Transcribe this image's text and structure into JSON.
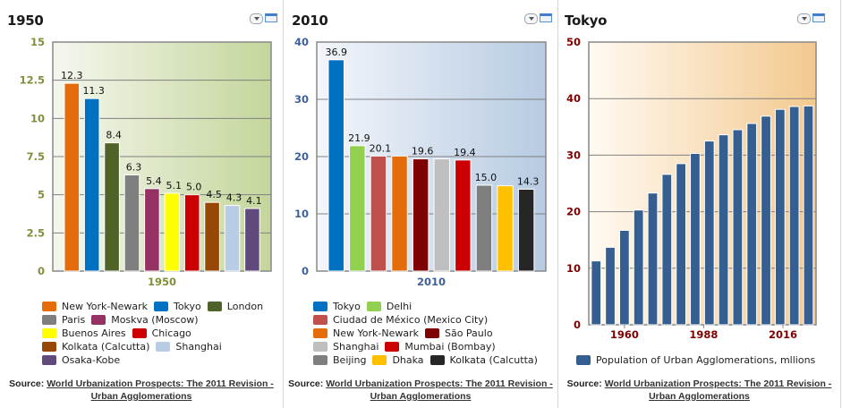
{
  "source": {
    "prefix": "Source:",
    "link_line1": "World Urbanization Prospects: The 2011 Revision -",
    "link_line2": "Urban Agglomerations"
  },
  "panels": [
    {
      "title": "1950"
    },
    {
      "title": "2010"
    },
    {
      "title": "Tokyo"
    }
  ],
  "chart_data": [
    {
      "type": "bar",
      "title": "1950",
      "xlabel": "1950",
      "ylabel": "",
      "ylim": [
        0,
        15
      ],
      "yticks": [
        "0",
        "2.5",
        "5",
        "7.5",
        "10",
        "12.5",
        "15"
      ],
      "ytick_values": [
        0,
        2.5,
        5,
        7.5,
        10,
        12.5,
        15
      ],
      "grid": true,
      "axis_color": "#7f8f3a",
      "legend_position": "bottom",
      "categories": [
        "New York-Newark",
        "Tokyo",
        "London",
        "Paris",
        "Moskva (Moscow)",
        "Buenos Aires",
        "Chicago",
        "Kolkata (Calcutta)",
        "Shanghai",
        "Osaka-Kobe"
      ],
      "values": [
        12.3,
        11.3,
        8.4,
        6.3,
        5.4,
        5.1,
        5.0,
        4.5,
        4.3,
        4.1
      ],
      "labels": [
        "12.3",
        "11.3",
        "8.4",
        "6.3",
        "5.4",
        "5.1",
        "5.0",
        "4.5",
        "4.3",
        "4.1"
      ],
      "colors": [
        "#e46c0a",
        "#0070c0",
        "#4f6228",
        "#7f7f7f",
        "#953163",
        "#ffff00",
        "#cc0000",
        "#974806",
        "#b8cce4",
        "#604a7b"
      ],
      "legend_rows": [
        [
          0,
          1,
          2
        ],
        [
          3,
          4
        ],
        [
          5,
          6
        ],
        [
          7,
          8
        ],
        [
          9
        ]
      ]
    },
    {
      "type": "bar",
      "title": "2010",
      "xlabel": "2010",
      "ylabel": "",
      "ylim": [
        0,
        40
      ],
      "yticks": [
        "0",
        "10",
        "20",
        "30",
        "40"
      ],
      "ytick_values": [
        0,
        10,
        20,
        30,
        40
      ],
      "grid": true,
      "axis_color": "#3f5f9a",
      "legend_position": "bottom",
      "categories": [
        "Tokyo",
        "Delhi",
        "Ciudad de México (Mexico City)",
        "New York-Newark",
        "São Paulo",
        "Shanghai",
        "Mumbai (Bombay)",
        "Beijing",
        "Dhaka",
        "Kolkata (Calcutta)"
      ],
      "values": [
        36.9,
        21.9,
        20.1,
        20.1,
        19.6,
        19.6,
        19.4,
        15.0,
        14.9,
        14.3
      ],
      "labels": [
        "36.9",
        "21.9",
        "20.1",
        "",
        "19.6",
        "",
        "19.4",
        "15.0",
        "",
        "14.3"
      ],
      "colors": [
        "#0070c0",
        "#92d050",
        "#c0504d",
        "#e46c0a",
        "#7f0000",
        "#bfbfbf",
        "#cc0000",
        "#7f7f7f",
        "#ffc000",
        "#262626"
      ],
      "legend_rows": [
        [
          0,
          1
        ],
        [
          2
        ],
        [
          3,
          4
        ],
        [
          5,
          6
        ],
        [
          7,
          8,
          9
        ]
      ]
    },
    {
      "type": "bar",
      "title": "Tokyo",
      "xlabel": "",
      "ylabel": "",
      "ylim": [
        0,
        50
      ],
      "yticks": [
        "0",
        "10",
        "20",
        "30",
        "40",
        "50"
      ],
      "ytick_values": [
        0,
        10,
        20,
        30,
        40,
        50
      ],
      "grid": true,
      "axis_color": "#7f0000",
      "legend_position": "bottom",
      "xtick_labels": [
        "1960",
        "1988",
        "2016"
      ],
      "xtick_values": [
        1960,
        1988,
        2016
      ],
      "x": [
        1950,
        1955,
        1960,
        1965,
        1970,
        1975,
        1980,
        1985,
        1990,
        1995,
        2000,
        2005,
        2010,
        2015,
        2020,
        2025
      ],
      "series": [
        {
          "name": "Population of Urban Agglomerations, mllions",
          "color": "#365f91",
          "values": [
            11.3,
            13.7,
            16.7,
            20.3,
            23.3,
            26.6,
            28.5,
            30.3,
            32.5,
            33.6,
            34.5,
            35.6,
            36.9,
            38.1,
            38.6,
            38.7
          ]
        }
      ]
    }
  ]
}
